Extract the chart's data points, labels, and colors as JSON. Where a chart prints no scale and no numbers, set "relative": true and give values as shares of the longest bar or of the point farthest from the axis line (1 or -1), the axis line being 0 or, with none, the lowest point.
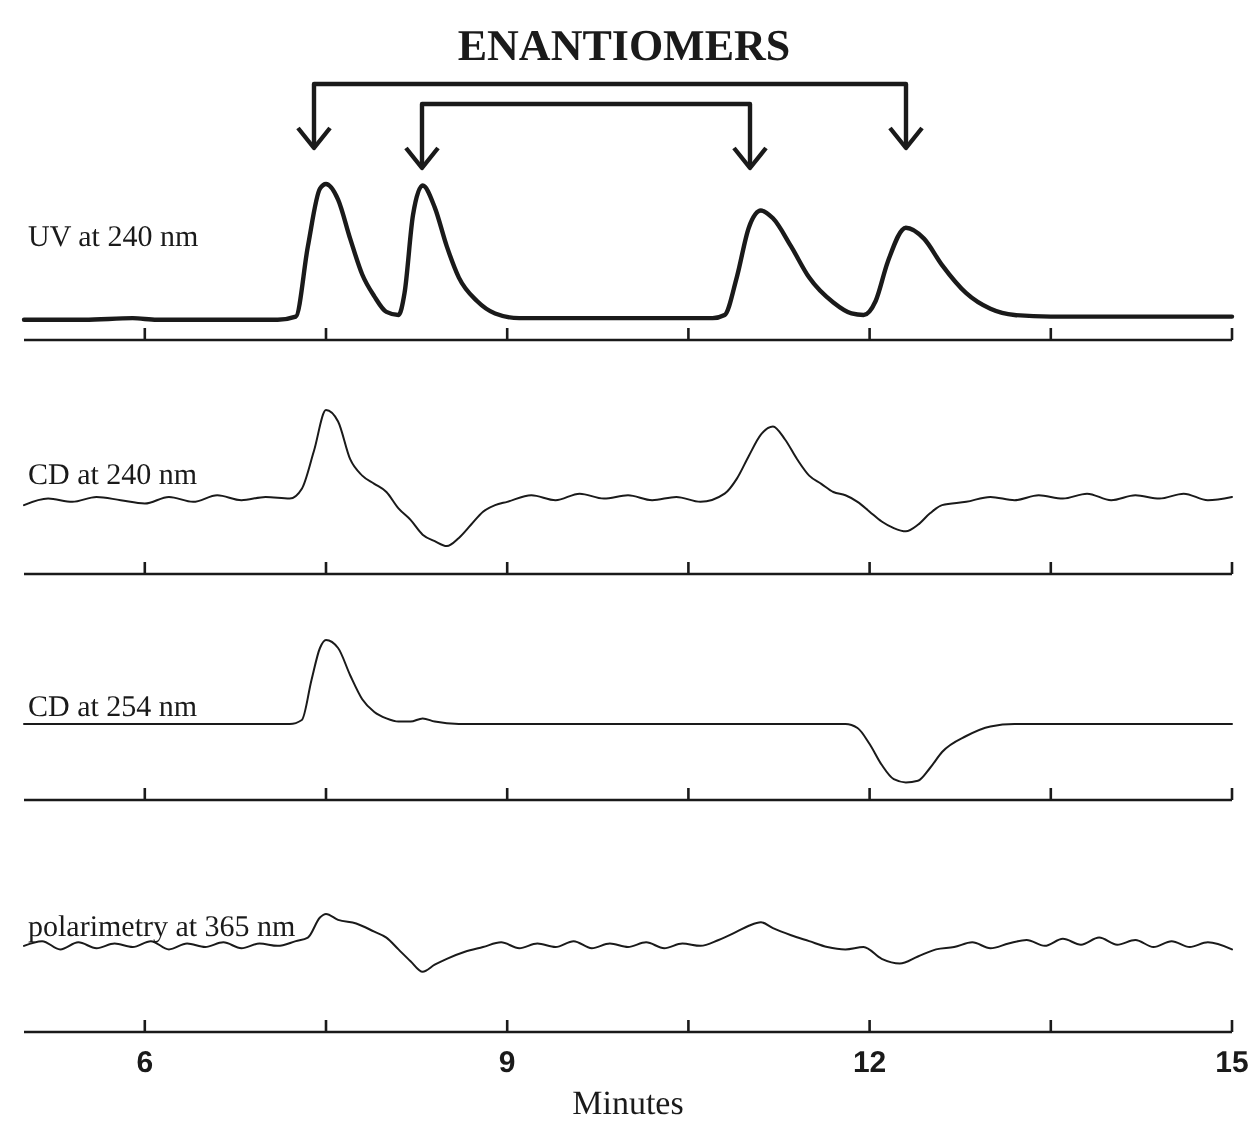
{
  "chart_data": [
    {
      "type": "line",
      "relative": true,
      "annotations": [
        "ENANTIOMERS"
      ],
      "xlim": [
        5,
        15
      ],
      "xticks": [
        6,
        {
          "value": 7.5,
          "label": null
        },
        9,
        {
          "value": 10.5,
          "label": null
        },
        12,
        {
          "value": 13.5,
          "label": null
        },
        15
      ],
      "tick_labels": false,
      "marker": "none",
      "line_style": "solid",
      "series": [
        {
          "name": "UV at 240 nm",
          "color": "#1a1a1a",
          "x": [
            5.0,
            5.5,
            5.9,
            6.1,
            7.1,
            7.25,
            7.35,
            7.45,
            7.5,
            7.6,
            7.7,
            7.8,
            7.9,
            8.0,
            8.1,
            8.15,
            8.22,
            8.3,
            8.4,
            8.5,
            8.6,
            8.75,
            8.9,
            9.1,
            10.7,
            10.8,
            10.9,
            11.0,
            11.1,
            11.2,
            11.35,
            11.5,
            11.7,
            11.85,
            11.95,
            12.05,
            12.15,
            12.3,
            12.45,
            12.6,
            12.8,
            13.0,
            13.2,
            13.5,
            15.0
          ],
          "values": [
            0.13,
            0.13,
            0.14,
            0.13,
            0.13,
            0.15,
            0.6,
            0.97,
            1.0,
            0.9,
            0.65,
            0.42,
            0.28,
            0.18,
            0.16,
            0.3,
            0.8,
            0.99,
            0.85,
            0.6,
            0.4,
            0.25,
            0.17,
            0.14,
            0.14,
            0.16,
            0.4,
            0.72,
            0.83,
            0.78,
            0.6,
            0.4,
            0.24,
            0.17,
            0.16,
            0.25,
            0.5,
            0.72,
            0.65,
            0.48,
            0.3,
            0.2,
            0.16,
            0.15,
            0.15
          ]
        }
      ]
    },
    {
      "type": "line",
      "relative": true,
      "xlim": [
        5,
        15
      ],
      "xticks": [
        6,
        {
          "value": 7.5,
          "label": null
        },
        9,
        {
          "value": 10.5,
          "label": null
        },
        12,
        {
          "value": 13.5,
          "label": null
        },
        15
      ],
      "tick_labels": false,
      "marker": "none",
      "line_style": "solid",
      "series": [
        {
          "name": "CD at 240 nm",
          "color": "#1a1a1a",
          "x": [
            5.0,
            5.2,
            5.4,
            5.6,
            5.8,
            6.0,
            6.2,
            6.4,
            6.6,
            6.8,
            7.0,
            7.2,
            7.3,
            7.4,
            7.5,
            7.6,
            7.7,
            7.8,
            7.9,
            8.0,
            8.1,
            8.2,
            8.3,
            8.4,
            8.5,
            8.6,
            8.7,
            8.8,
            8.9,
            9.0,
            9.2,
            9.4,
            9.6,
            9.8,
            10.0,
            10.2,
            10.4,
            10.6,
            10.8,
            10.9,
            11.0,
            11.1,
            11.2,
            11.3,
            11.4,
            11.5,
            11.6,
            11.7,
            11.8,
            11.9,
            12.0,
            12.1,
            12.2,
            12.3,
            12.4,
            12.5,
            12.6,
            12.8,
            13.0,
            13.2,
            13.4,
            13.6,
            13.8,
            14.0,
            14.2,
            14.4,
            14.6,
            14.8,
            15.0
          ],
          "values": [
            0.42,
            0.46,
            0.44,
            0.47,
            0.45,
            0.43,
            0.47,
            0.44,
            0.48,
            0.45,
            0.47,
            0.46,
            0.52,
            0.75,
            1.0,
            0.93,
            0.7,
            0.6,
            0.55,
            0.5,
            0.4,
            0.33,
            0.24,
            0.2,
            0.17,
            0.22,
            0.3,
            0.38,
            0.42,
            0.44,
            0.48,
            0.45,
            0.49,
            0.46,
            0.48,
            0.45,
            0.47,
            0.44,
            0.49,
            0.58,
            0.72,
            0.85,
            0.9,
            0.82,
            0.7,
            0.6,
            0.55,
            0.5,
            0.48,
            0.44,
            0.38,
            0.32,
            0.28,
            0.26,
            0.3,
            0.37,
            0.42,
            0.44,
            0.47,
            0.45,
            0.48,
            0.46,
            0.49,
            0.45,
            0.48,
            0.46,
            0.49,
            0.45,
            0.47
          ]
        }
      ]
    },
    {
      "type": "line",
      "relative": true,
      "xlim": [
        5,
        15
      ],
      "xticks": [
        6,
        {
          "value": 7.5,
          "label": null
        },
        9,
        {
          "value": 10.5,
          "label": null
        },
        12,
        {
          "value": 13.5,
          "label": null
        },
        15
      ],
      "tick_labels": false,
      "marker": "none",
      "line_style": "solid",
      "series": [
        {
          "name": "CD at 254 nm",
          "color": "#1a1a1a",
          "x": [
            5.0,
            7.2,
            7.3,
            7.38,
            7.45,
            7.5,
            7.6,
            7.7,
            7.8,
            7.9,
            8.0,
            8.1,
            8.2,
            8.3,
            8.4,
            8.6,
            11.8,
            11.9,
            12.0,
            12.1,
            12.2,
            12.3,
            12.4,
            12.5,
            12.6,
            12.8,
            13.0,
            13.2,
            15.0
          ],
          "values": [
            0.475,
            0.475,
            0.5,
            0.75,
            0.95,
            1.0,
            0.95,
            0.78,
            0.63,
            0.55,
            0.51,
            0.49,
            0.49,
            0.51,
            0.49,
            0.475,
            0.475,
            0.45,
            0.35,
            0.22,
            0.13,
            0.11,
            0.12,
            0.2,
            0.3,
            0.4,
            0.46,
            0.475,
            0.475
          ]
        }
      ]
    },
    {
      "type": "line",
      "relative": true,
      "xlabel": "Minutes",
      "xlim": [
        5,
        15
      ],
      "xticks": [
        6,
        {
          "value": 7.5,
          "label": null
        },
        9,
        {
          "value": 10.5,
          "label": null
        },
        12,
        {
          "value": 13.5,
          "label": null
        },
        15
      ],
      "tick_labels": "x",
      "marker": "none",
      "line_style": "solid",
      "series": [
        {
          "name": "polarimetry at 365 nm",
          "color": "#1a1a1a",
          "x": [
            5.0,
            5.15,
            5.3,
            5.45,
            5.6,
            5.75,
            5.9,
            6.05,
            6.2,
            6.35,
            6.5,
            6.65,
            6.8,
            6.95,
            7.1,
            7.25,
            7.35,
            7.45,
            7.5,
            7.6,
            7.75,
            7.9,
            8.0,
            8.1,
            8.2,
            8.3,
            8.4,
            8.5,
            8.65,
            8.8,
            8.95,
            9.1,
            9.25,
            9.4,
            9.55,
            9.7,
            9.85,
            10.0,
            10.15,
            10.3,
            10.45,
            10.6,
            10.75,
            10.9,
            11.0,
            11.1,
            11.2,
            11.35,
            11.5,
            11.65,
            11.8,
            11.95,
            12.1,
            12.25,
            12.4,
            12.55,
            12.7,
            12.85,
            13.0,
            13.15,
            13.3,
            13.45,
            13.6,
            13.75,
            13.9,
            14.05,
            14.2,
            14.35,
            14.5,
            14.65,
            14.8,
            15.0
          ],
          "values": [
            0.73,
            0.77,
            0.7,
            0.76,
            0.71,
            0.75,
            0.72,
            0.77,
            0.7,
            0.75,
            0.72,
            0.76,
            0.71,
            0.75,
            0.73,
            0.77,
            0.8,
            0.97,
            1.0,
            0.95,
            0.92,
            0.85,
            0.8,
            0.7,
            0.6,
            0.51,
            0.57,
            0.62,
            0.68,
            0.72,
            0.76,
            0.71,
            0.75,
            0.72,
            0.77,
            0.71,
            0.75,
            0.72,
            0.76,
            0.71,
            0.75,
            0.73,
            0.78,
            0.85,
            0.9,
            0.93,
            0.88,
            0.82,
            0.77,
            0.72,
            0.7,
            0.72,
            0.62,
            0.58,
            0.64,
            0.7,
            0.72,
            0.76,
            0.71,
            0.75,
            0.78,
            0.73,
            0.79,
            0.74,
            0.8,
            0.74,
            0.78,
            0.72,
            0.77,
            0.72,
            0.76,
            0.7
          ]
        }
      ]
    }
  ]
}
